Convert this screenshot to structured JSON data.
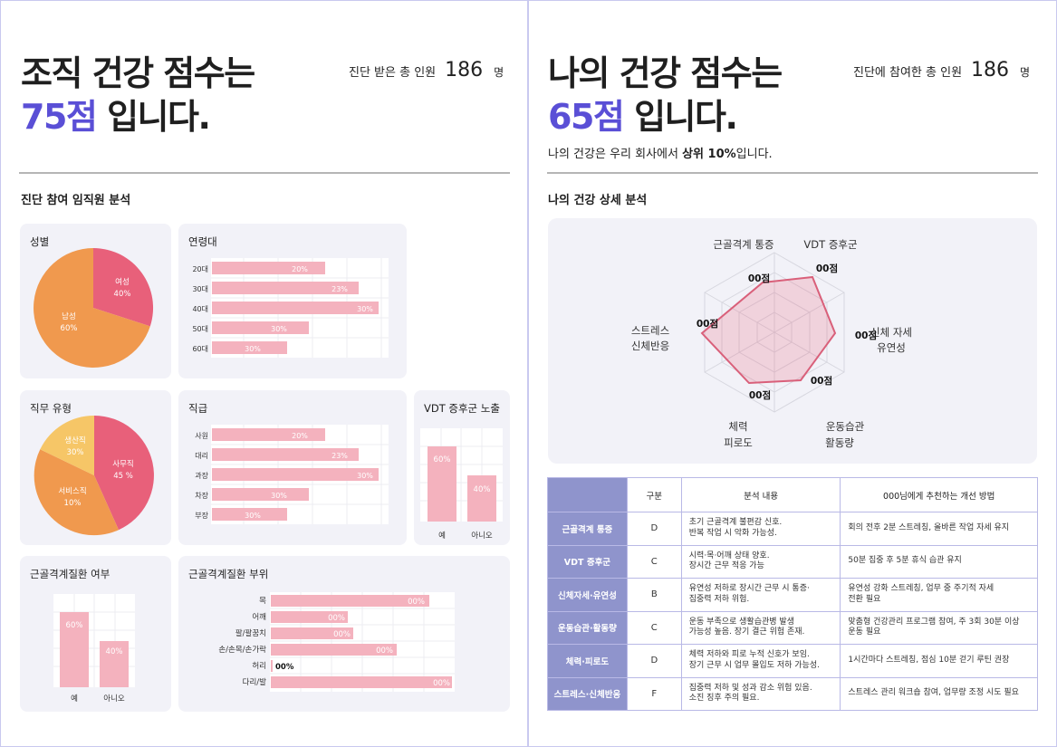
{
  "left": {
    "headline_line1": "조직 건강 점수는",
    "score": "75점",
    "headline_suffix": " 입니다.",
    "meta_label": "진단 받은 총 인원",
    "meta_count": "186",
    "meta_unit": "명",
    "section_title": "진단 참여 임직원 분석",
    "cards": {
      "gender": "성별",
      "age": "연령대",
      "job_type": "직무 유형",
      "position": "직급",
      "vdt": "VDT 증후군 노출",
      "msd": "근골격계질환 여부",
      "msd_part": "근골격계질환 부위"
    }
  },
  "right": {
    "headline_line1": "나의 건강 점수는",
    "score": "65점",
    "headline_suffix": " 입니다.",
    "meta_label": "진단에 참여한 총 인원",
    "meta_count": "186",
    "meta_unit": "명",
    "subtitle_prefix": "나의 건강은 우리 회사에서 ",
    "subtitle_bold": "상위 10%",
    "subtitle_suffix": "입니다.",
    "section_title": "나의 건강 상세 분석"
  },
  "table": {
    "headers": [
      "",
      "구분",
      "분석 내용",
      "000님에게 추천하는 개선 방법"
    ],
    "rows": [
      {
        "name": "근골격계 통증",
        "grade": "D",
        "analysis": [
          "초기 근골격계 불편감 신호.",
          "반복 작업 시 악화 가능성."
        ],
        "advice": [
          "회의 전후 2분 스트레칭, 올바른 작업 자세 유지"
        ]
      },
      {
        "name": "VDT 증후군",
        "grade": "C",
        "analysis": [
          "시력·목·어깨 상태 양호.",
          "장시간 근무 적응 가능"
        ],
        "advice": [
          "50분 집중 후 5분 휴식 습관 유지"
        ]
      },
      {
        "name": "신체자세·유연성",
        "grade": "B",
        "analysis": [
          "유연성 저하로 장시간 근무 시 통증·",
          "집중력 저하 위험."
        ],
        "advice": [
          "유연성 강화 스트레칭, 업무 중 주기적 자세",
          "전환 필요"
        ]
      },
      {
        "name": "운동습관·활동량",
        "grade": "C",
        "analysis": [
          "운동 부족으로 생활습관병 발생",
          "가능성 높음. 장기 결근 위험 존재."
        ],
        "advice": [
          "맞춤형 건강관리 프로그램 참여, 주 3회 30분 이상",
          "운동 필요"
        ]
      },
      {
        "name": "체력·피로도",
        "grade": "D",
        "analysis": [
          "체력 저하와 피로 누적 신호가 보임.",
          "장기 근무 시 업무 몰입도 저하 가능성."
        ],
        "advice": [
          "1시간마다 스트레칭, 점심 10분 걷기 루틴 권장"
        ]
      },
      {
        "name": "스트레스·신체반응",
        "grade": "F",
        "analysis": [
          "집중력 저하 및 성과 감소 위험 있음.",
          "소진 징후 주의 필요."
        ],
        "advice": [
          "스트레스 관리 워크숍 참여, 업무량 조정 시도 필요"
        ]
      }
    ]
  },
  "chart_data": [
    {
      "type": "pie",
      "title": "성별",
      "labels": [
        "여성",
        "남성"
      ],
      "values": [
        40,
        60
      ],
      "colors": [
        "#e8607a",
        "#f0994e"
      ]
    },
    {
      "type": "bar",
      "orientation": "horizontal",
      "title": "연령대",
      "categories": [
        "20대",
        "30대",
        "40대",
        "50대",
        "60대"
      ],
      "values": [
        20,
        23,
        30,
        30,
        30
      ],
      "value_labels": [
        "20%",
        "23%",
        "30%",
        "30%",
        "30%"
      ]
    },
    {
      "type": "pie",
      "title": "직무 유형",
      "labels": [
        "사무직",
        "서비스직",
        "생산직"
      ],
      "values": [
        45,
        10,
        30
      ],
      "value_labels": [
        "45 %",
        "10%",
        "30%"
      ],
      "colors": [
        "#e8607a",
        "#f0994e",
        "#f6c667"
      ]
    },
    {
      "type": "bar",
      "orientation": "horizontal",
      "title": "직급",
      "categories": [
        "사원",
        "대리",
        "과장",
        "차장",
        "부장"
      ],
      "values": [
        20,
        23,
        30,
        30,
        30
      ],
      "value_labels": [
        "20%",
        "23%",
        "30%",
        "30%",
        "30%"
      ]
    },
    {
      "type": "bar",
      "title": "VDT 증후군 노출",
      "categories": [
        "예",
        "아니오"
      ],
      "values": [
        60,
        40
      ],
      "value_labels": [
        "60%",
        "40%"
      ]
    },
    {
      "type": "bar",
      "title": "근골격계질환 여부",
      "categories": [
        "예",
        "아니오"
      ],
      "values": [
        60,
        40
      ],
      "value_labels": [
        "60%",
        "40%"
      ]
    },
    {
      "type": "bar",
      "orientation": "horizontal",
      "title": "근골격계질환 부위",
      "categories": [
        "목",
        "어깨",
        "팔/팔꿈치",
        "손/손목/손가락",
        "허리",
        "다리/발"
      ],
      "value_labels": [
        "00%",
        "00%",
        "00%",
        "00%",
        "00%",
        "00%"
      ]
    },
    {
      "type": "radar",
      "title": "나의 건강 상세 분석",
      "categories": [
        "근골격계 통증",
        "VDT 증후군",
        "신체 자세 유연성",
        "운동습관 활동량",
        "체력 피로도",
        "스트레스 신체반응"
      ],
      "value_labels": [
        "00점",
        "00점",
        "00점",
        "00점",
        "00점",
        "00점"
      ],
      "color": "#d9607a"
    }
  ]
}
